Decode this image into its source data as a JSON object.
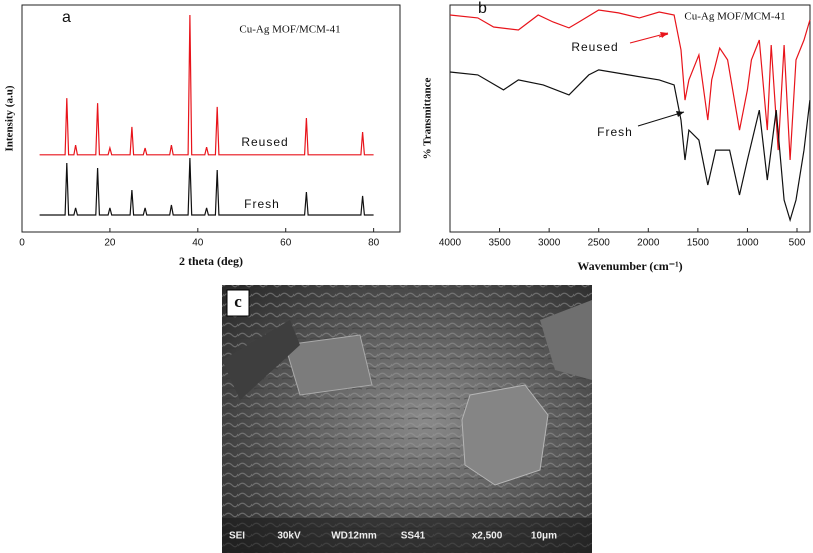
{
  "chart_data": [
    {
      "type": "line",
      "panel_label": "a",
      "title": "Cu-Ag MOF/MCM-41",
      "x_label": "2 theta (deg)",
      "y_label": "Intensity (a.u)",
      "xlim": [
        0,
        86
      ],
      "ylim": [
        0,
        100
      ],
      "xticks": [
        0,
        20,
        40,
        60,
        80
      ],
      "x": [
        4,
        9.8,
        10.2,
        10.6,
        11.8,
        12.2,
        12.6,
        16.8,
        17.2,
        17.6,
        19.6,
        20,
        20.4,
        24.6,
        25,
        25.4,
        27.6,
        28,
        28.4,
        33.6,
        34,
        34.4,
        37.8,
        38.2,
        38.6,
        41.6,
        42,
        42.4,
        44,
        44.4,
        44.8,
        64.3,
        64.7,
        65.1,
        77.1,
        77.5,
        77.9,
        80
      ],
      "series": [
        {
          "name": "Reused",
          "color": "#e8141b",
          "values": [
            34,
            34,
            59,
            34,
            34,
            38.3,
            34,
            34,
            56.8,
            34,
            34,
            37,
            34,
            34,
            46.3,
            34,
            34,
            37,
            34,
            34,
            38.3,
            34,
            34,
            95.6,
            34,
            34,
            37.4,
            34,
            34,
            55.1,
            34,
            34,
            50.2,
            34,
            34,
            44,
            34,
            34
          ]
        },
        {
          "name": "Fresh",
          "color": "#111111",
          "values": [
            7.5,
            7.5,
            30.4,
            7.5,
            7.5,
            10.6,
            7.5,
            7.5,
            28.2,
            7.5,
            7.5,
            10.6,
            7.5,
            7.5,
            18.5,
            7.5,
            7.5,
            10.6,
            7.5,
            7.5,
            11.9,
            7.5,
            7.5,
            32.6,
            7.5,
            7.5,
            10.6,
            7.5,
            7.5,
            27.3,
            7.5,
            7.5,
            17.6,
            7.5,
            7.5,
            15.9,
            7.5,
            7.5
          ]
        }
      ]
    },
    {
      "type": "line",
      "panel_label": "b",
      "title": "Cu-Ag MOF/MCM-41",
      "x_label": "Wavenumber (cm⁻¹)",
      "y_label": "% Transmittance",
      "xlim": [
        4000,
        369
      ],
      "ylim": [
        0,
        100
      ],
      "xticks": [
        4000,
        3500,
        3000,
        2500,
        2000,
        1500,
        1000,
        500
      ],
      "series": [
        {
          "name": "Reused",
          "color": "#e8141b",
          "x": [
            4000,
            3720,
            3560,
            3310,
            3110,
            2960,
            2800,
            2700,
            2500,
            2300,
            2090,
            1890,
            1740,
            1670,
            1630,
            1590,
            1490,
            1400,
            1360,
            1280,
            1200,
            1080,
            1000,
            960,
            880,
            800,
            760,
            690,
            630,
            570,
            510,
            430,
            370
          ],
          "values": [
            95.6,
            94.3,
            90.3,
            89,
            95.6,
            92.5,
            89.9,
            92.5,
            97.8,
            96.5,
            94.3,
            96.9,
            95.6,
            80.2,
            58.1,
            67,
            78,
            49.3,
            67,
            81,
            75.8,
            44.9,
            62.6,
            75.8,
            84.6,
            44.9,
            82.4,
            36.1,
            82.4,
            31.7,
            75.8,
            84.6,
            93.4
          ]
        },
        {
          "name": "Fresh",
          "color": "#111111",
          "x": [
            4000,
            3720,
            3460,
            3310,
            3060,
            2800,
            2600,
            2500,
            2200,
            1890,
            1740,
            1670,
            1630,
            1590,
            1490,
            1400,
            1320,
            1180,
            1080,
            1000,
            880,
            800,
            710,
            630,
            570,
            510,
            430,
            370
          ],
          "values": [
            70.5,
            69.2,
            62.6,
            67,
            64.8,
            60.4,
            69.2,
            71.4,
            69.2,
            67,
            64.8,
            49.3,
            31.7,
            44.9,
            40.5,
            20.7,
            36.1,
            36.1,
            16.3,
            31.7,
            53.7,
            22.9,
            53.7,
            14.1,
            5.3,
            14.1,
            36.1,
            58.1
          ]
        }
      ]
    }
  ],
  "image": {
    "panel_label": "c",
    "caption_bar": [
      "SEI",
      "30kV",
      "WD12mm",
      "SS41",
      "x2,500",
      "10μm"
    ]
  }
}
